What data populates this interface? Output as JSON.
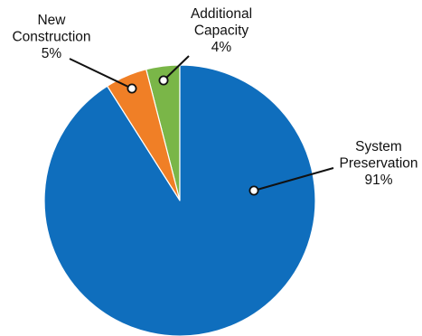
{
  "chart_data": {
    "type": "pie",
    "title": "",
    "slices": [
      {
        "label_lines": [
          "Additional",
          "Capacity"
        ],
        "value": 4,
        "value_label": "4%",
        "color": "#7ab648"
      },
      {
        "label_lines": [
          "New",
          "Construction"
        ],
        "value": 5,
        "value_label": "5%",
        "color": "#f07f26"
      },
      {
        "label_lines": [
          "System",
          "Preservation"
        ],
        "value": 91,
        "value_label": "91%",
        "color": "#0f6ebd"
      }
    ],
    "slice_border_color": "#ffffff",
    "leader_line_color": "#111111",
    "marker_fill": "#ffffff"
  }
}
